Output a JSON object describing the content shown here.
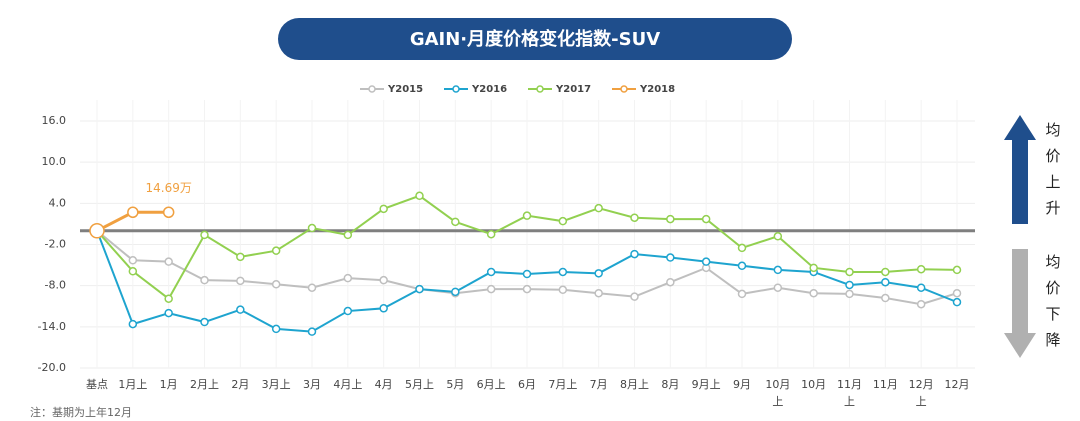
{
  "chart_data": {
    "type": "line",
    "title": "GAIN·月度价格变化指数-SUV",
    "categories": [
      "基点",
      "1月上",
      "1月",
      "2月上",
      "2月",
      "3月上",
      "3月",
      "4月上",
      "4月",
      "5月上",
      "5月",
      "6月上",
      "6月",
      "7月上",
      "7月",
      "8月上",
      "8月",
      "9月上",
      "9月",
      "10月上",
      "10月",
      "11月上",
      "11月",
      "12月上",
      "12月"
    ],
    "series": [
      {
        "name": "Y2015",
        "color": "#bfbfbf",
        "values": [
          0,
          -4.3,
          -4.5,
          -7.2,
          -7.3,
          -7.8,
          -8.3,
          -6.9,
          -7.2,
          -8.5,
          -9.1,
          -8.5,
          -8.5,
          -8.6,
          -9.1,
          -9.6,
          -7.5,
          -5.4,
          -9.2,
          -8.3,
          -9.1,
          -9.2,
          -9.8,
          -10.7,
          -9.1
        ]
      },
      {
        "name": "Y2016",
        "color": "#1ea4cf",
        "values": [
          0,
          -13.6,
          -12.0,
          -13.3,
          -11.5,
          -14.3,
          -14.7,
          -11.7,
          -11.3,
          -8.5,
          -8.9,
          -6.0,
          -6.3,
          -6.0,
          -6.2,
          -3.4,
          -3.9,
          -4.5,
          -5.1,
          -5.7,
          -6.0,
          -7.9,
          -7.5,
          -8.3,
          -10.4
        ]
      },
      {
        "name": "Y2017",
        "color": "#92d050",
        "values": [
          0,
          -5.9,
          -9.9,
          -0.6,
          -3.8,
          -2.9,
          0.4,
          -0.6,
          3.2,
          5.1,
          1.3,
          -0.5,
          2.2,
          1.4,
          3.3,
          1.9,
          1.7,
          1.7,
          -2.5,
          -0.8,
          -5.4,
          -6.0,
          -6.0,
          -5.6,
          -5.7
        ]
      },
      {
        "name": "Y2018",
        "color": "#f0a040",
        "values": [
          0,
          2.7,
          2.7,
          null,
          null,
          null,
          null,
          null,
          null,
          null,
          null,
          null,
          null,
          null,
          null,
          null,
          null,
          null,
          null,
          null,
          null,
          null,
          null,
          null,
          null
        ]
      }
    ],
    "ylim": [
      -20,
      16
    ],
    "yticks": [
      {
        "value": 16,
        "label": "16.0"
      },
      {
        "value": 10,
        "label": "10.0"
      },
      {
        "value": 4,
        "label": "4.0"
      },
      {
        "value": -2,
        "label": "-2.0"
      },
      {
        "value": -8,
        "label": "-8.0"
      },
      {
        "value": -14,
        "label": "-14.0"
      },
      {
        "value": -20,
        "label": "-20.0"
      }
    ],
    "reference_line": 0,
    "grid": true,
    "legend": "top",
    "annotation": "14.69万",
    "up_label": "均价上升",
    "down_label": "均价下降",
    "note": "注：基期为上年12月"
  }
}
